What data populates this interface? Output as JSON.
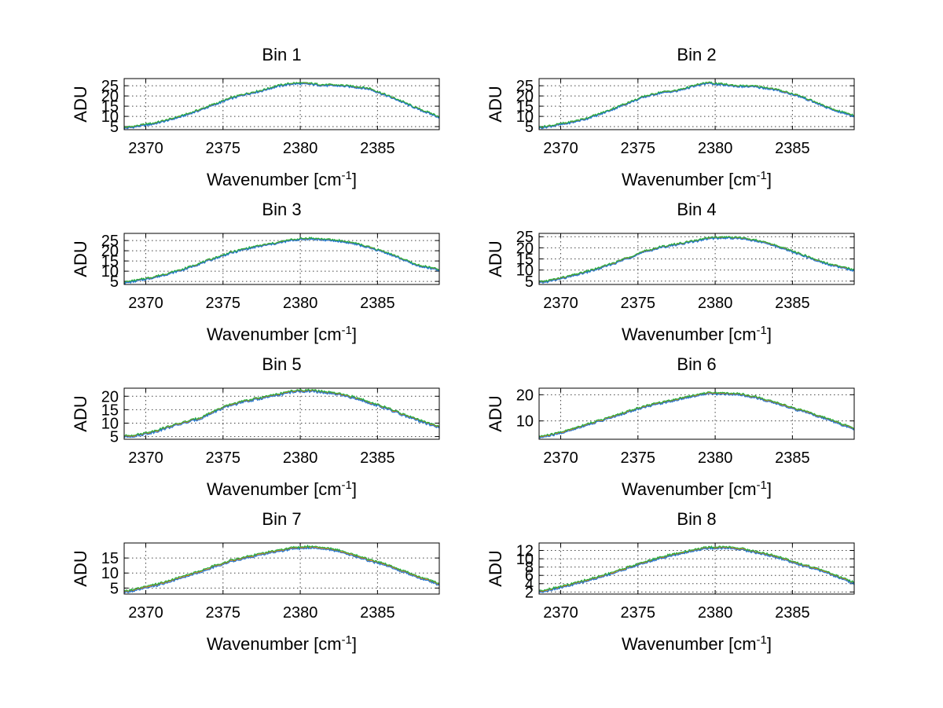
{
  "figure": {
    "chart_data": [
      {
        "type": "line",
        "title": "Bin 1",
        "xlabel": "Wavenumber [cm",
        "xlabel_sup": "-1",
        "xlabel_end": "]",
        "ylabel": "ADU",
        "xlim": [
          2368.6,
          2389.0
        ],
        "ylim": [
          3.5,
          28.5
        ],
        "xticks": [
          2370,
          2375,
          2380,
          2385
        ],
        "yticks": [
          5,
          10,
          15,
          20,
          25
        ],
        "grid": true,
        "x": [
          2368.6,
          2369.5,
          2370.5,
          2371.5,
          2372.5,
          2373.5,
          2374.5,
          2375.5,
          2376.5,
          2377.5,
          2378.5,
          2379.5,
          2380.5,
          2381.5,
          2382.5,
          2383.5,
          2384.5,
          2385.5,
          2386.5,
          2387.5,
          2389.0
        ],
        "series": [
          {
            "values": [
              4.3,
              5.3,
              6.5,
              8.3,
              10.5,
              13.2,
              16.0,
              18.8,
              21.0,
              22.6,
              24.8,
              26.1,
              26.0,
              25.3,
              25.1,
              24.5,
              23.5,
              20.5,
              17.5,
              14.0,
              9.7
            ]
          },
          {
            "values": [
              4.6,
              5.6,
              6.8,
              8.6,
              10.8,
              13.5,
              16.3,
              19.1,
              21.3,
              22.9,
              25.1,
              26.4,
              26.3,
              25.6,
              25.4,
              24.8,
              23.8,
              20.8,
              17.8,
              14.3,
              10.0
            ]
          },
          {
            "values": [
              4.0,
              5.0,
              6.2,
              8.0,
              10.2,
              12.9,
              15.7,
              18.5,
              20.7,
              22.3,
              24.5,
              25.8,
              25.7,
              25.0,
              24.8,
              24.2,
              23.2,
              20.2,
              17.2,
              13.7,
              9.4
            ]
          }
        ]
      },
      {
        "type": "line",
        "title": "Bin 2",
        "xlabel": "Wavenumber [cm",
        "xlabel_sup": "-1",
        "xlabel_end": "]",
        "ylabel": "ADU",
        "xlim": [
          2368.6,
          2389.0
        ],
        "ylim": [
          3.5,
          28.5
        ],
        "xticks": [
          2370,
          2375,
          2380,
          2385
        ],
        "yticks": [
          5,
          10,
          15,
          20,
          25
        ],
        "grid": true,
        "x": [
          2368.6,
          2369.5,
          2370.5,
          2371.5,
          2372.5,
          2373.5,
          2374.5,
          2375.5,
          2376.5,
          2377.5,
          2378.5,
          2379.5,
          2380.5,
          2381.5,
          2382.5,
          2383.5,
          2384.5,
          2385.5,
          2386.5,
          2387.5,
          2389.0
        ],
        "series": [
          {
            "values": [
              4.5,
              5.5,
              6.8,
              8.6,
              11.0,
              14.0,
              17.0,
              19.8,
              21.7,
              22.5,
              24.6,
              26.4,
              25.5,
              24.8,
              24.6,
              23.7,
              22.0,
              19.8,
              16.8,
              13.5,
              10.3
            ]
          },
          {
            "values": [
              4.8,
              5.8,
              7.1,
              8.9,
              11.3,
              14.3,
              17.3,
              20.1,
              22.0,
              22.8,
              24.9,
              26.7,
              25.8,
              25.1,
              24.9,
              24.0,
              22.3,
              20.1,
              17.1,
              13.8,
              10.6
            ]
          },
          {
            "values": [
              4.2,
              5.2,
              6.5,
              8.3,
              10.7,
              13.7,
              16.7,
              19.5,
              21.4,
              22.2,
              24.3,
              26.1,
              25.2,
              24.5,
              24.3,
              23.4,
              21.7,
              19.5,
              16.5,
              13.2,
              10.0
            ]
          }
        ]
      },
      {
        "type": "line",
        "title": "Bin 3",
        "xlabel": "Wavenumber [cm",
        "xlabel_sup": "-1",
        "xlabel_end": "]",
        "ylabel": "ADU",
        "xlim": [
          2368.6,
          2389.0
        ],
        "ylim": [
          3.5,
          28.5
        ],
        "xticks": [
          2370,
          2375,
          2380,
          2385
        ],
        "yticks": [
          5,
          10,
          15,
          20,
          25
        ],
        "grid": true,
        "x": [
          2368.6,
          2369.5,
          2370.5,
          2371.5,
          2372.5,
          2373.5,
          2374.5,
          2375.5,
          2376.5,
          2377.5,
          2378.5,
          2379.5,
          2380.5,
          2381.5,
          2382.5,
          2383.5,
          2384.5,
          2385.5,
          2386.5,
          2387.5,
          2389.0
        ],
        "series": [
          {
            "values": [
              4.4,
              5.5,
              7.0,
              8.9,
              11.0,
              13.8,
              16.4,
              19.0,
              21.0,
              22.5,
              23.8,
              25.3,
              26.0,
              25.5,
              24.8,
              23.6,
              21.5,
              19.3,
              16.3,
              13.0,
              10.6
            ]
          },
          {
            "values": [
              4.7,
              5.8,
              7.3,
              9.2,
              11.3,
              14.1,
              16.7,
              19.3,
              21.3,
              22.8,
              24.1,
              25.6,
              26.3,
              25.8,
              25.1,
              23.9,
              21.8,
              19.6,
              16.6,
              13.3,
              10.9
            ]
          },
          {
            "values": [
              4.1,
              5.2,
              6.7,
              8.6,
              10.7,
              13.5,
              16.1,
              18.7,
              20.7,
              22.2,
              23.5,
              25.0,
              25.7,
              25.2,
              24.5,
              23.3,
              21.2,
              19.0,
              16.0,
              12.7,
              10.3
            ]
          }
        ]
      },
      {
        "type": "line",
        "title": "Bin 4",
        "xlabel": "Wavenumber [cm",
        "xlabel_sup": "-1",
        "xlabel_end": "]",
        "ylabel": "ADU",
        "xlim": [
          2368.6,
          2389.0
        ],
        "ylim": [
          3.5,
          26.5
        ],
        "xticks": [
          2370,
          2375,
          2380,
          2385
        ],
        "yticks": [
          5,
          10,
          15,
          20,
          25
        ],
        "grid": true,
        "x": [
          2368.6,
          2369.5,
          2370.5,
          2371.5,
          2372.5,
          2373.5,
          2374.5,
          2375.5,
          2376.5,
          2377.5,
          2378.5,
          2379.5,
          2380.5,
          2381.5,
          2382.5,
          2383.5,
          2384.5,
          2385.5,
          2386.5,
          2387.5,
          2389.0
        ],
        "series": [
          {
            "values": [
              4.3,
              5.5,
              7.0,
              8.8,
              10.8,
              13.2,
              15.9,
              18.4,
              20.3,
              21.6,
              22.8,
              24.2,
              24.6,
              24.5,
              23.4,
              21.8,
              19.6,
              17.1,
              14.5,
              12.3,
              9.8
            ]
          },
          {
            "values": [
              4.6,
              5.8,
              7.3,
              9.1,
              11.1,
              13.5,
              16.2,
              18.7,
              20.6,
              21.9,
              23.1,
              24.5,
              24.9,
              24.8,
              23.7,
              22.1,
              19.9,
              17.4,
              14.8,
              12.6,
              10.1
            ]
          },
          {
            "values": [
              4.0,
              5.2,
              6.7,
              8.5,
              10.5,
              12.9,
              15.6,
              18.1,
              20.0,
              21.3,
              22.5,
              23.9,
              24.3,
              24.2,
              23.1,
              21.5,
              19.3,
              16.8,
              14.2,
              12.0,
              9.5
            ]
          }
        ]
      },
      {
        "type": "line",
        "title": "Bin 5",
        "xlabel": "Wavenumber [cm",
        "xlabel_sup": "-1",
        "xlabel_end": "]",
        "ylabel": "ADU",
        "xlim": [
          2368.6,
          2389.0
        ],
        "ylim": [
          4.0,
          23.0
        ],
        "xticks": [
          2370,
          2375,
          2380,
          2385
        ],
        "yticks": [
          5,
          10,
          15,
          20
        ],
        "grid": true,
        "x": [
          2368.6,
          2369.5,
          2370.5,
          2371.5,
          2372.5,
          2373.5,
          2374.5,
          2375.5,
          2376.5,
          2377.5,
          2378.5,
          2379.5,
          2380.5,
          2381.5,
          2382.5,
          2383.5,
          2384.5,
          2385.5,
          2386.5,
          2387.5,
          2389.0
        ],
        "series": [
          {
            "values": [
              5.0,
              5.6,
              6.8,
              8.6,
              10.2,
              11.8,
              14.5,
              16.8,
              18.2,
              19.4,
              20.5,
              21.8,
              22.1,
              21.6,
              20.7,
              19.5,
              17.7,
              15.7,
              13.5,
              11.3,
              8.5
            ]
          },
          {
            "values": [
              5.3,
              5.9,
              7.1,
              8.9,
              10.5,
              12.1,
              14.8,
              17.1,
              18.5,
              19.7,
              20.8,
              22.1,
              22.4,
              21.9,
              21.0,
              19.8,
              18.0,
              16.0,
              13.8,
              11.6,
              8.8
            ]
          },
          {
            "values": [
              4.7,
              5.3,
              6.5,
              8.3,
              9.9,
              11.5,
              14.2,
              16.5,
              17.9,
              19.1,
              20.2,
              21.5,
              21.8,
              21.3,
              20.4,
              19.2,
              17.4,
              15.4,
              13.2,
              11.0,
              8.2
            ]
          }
        ]
      },
      {
        "type": "line",
        "title": "Bin 6",
        "xlabel": "Wavenumber [cm",
        "xlabel_sup": "-1",
        "xlabel_end": "]",
        "ylabel": "ADU",
        "xlim": [
          2368.6,
          2389.0
        ],
        "ylim": [
          3.0,
          22.5
        ],
        "xticks": [
          2370,
          2375,
          2380,
          2385
        ],
        "yticks": [
          10,
          20
        ],
        "grid": true,
        "x": [
          2368.6,
          2369.5,
          2370.5,
          2371.5,
          2372.5,
          2373.5,
          2374.5,
          2375.5,
          2376.5,
          2377.5,
          2378.5,
          2379.5,
          2380.5,
          2381.5,
          2382.5,
          2383.5,
          2384.5,
          2385.5,
          2386.5,
          2387.5,
          2389.0
        ],
        "series": [
          {
            "values": [
              3.8,
              4.8,
              6.3,
              8.3,
              10.0,
              11.8,
              13.8,
              15.6,
              16.9,
              18.2,
              19.5,
              20.6,
              20.4,
              20.3,
              19.2,
              17.6,
              15.8,
              14.0,
              12.2,
              10.2,
              6.9
            ]
          },
          {
            "values": [
              4.1,
              5.1,
              6.6,
              8.6,
              10.3,
              12.1,
              14.1,
              15.9,
              17.2,
              18.5,
              19.8,
              20.9,
              20.7,
              20.6,
              19.5,
              17.9,
              16.1,
              14.3,
              12.5,
              10.5,
              7.2
            ]
          },
          {
            "values": [
              3.5,
              4.5,
              6.0,
              8.0,
              9.7,
              11.5,
              13.5,
              15.3,
              16.6,
              17.9,
              19.2,
              20.3,
              20.1,
              20.0,
              18.9,
              17.3,
              15.5,
              13.7,
              11.9,
              9.9,
              6.6
            ]
          }
        ]
      },
      {
        "type": "line",
        "title": "Bin 7",
        "xlabel": "Wavenumber [cm",
        "xlabel_sup": "-1",
        "xlabel_end": "]",
        "ylabel": "ADU",
        "xlim": [
          2368.6,
          2389.0
        ],
        "ylim": [
          3.0,
          20.0
        ],
        "xticks": [
          2370,
          2375,
          2380,
          2385
        ],
        "yticks": [
          5,
          10,
          15
        ],
        "grid": true,
        "x": [
          2368.6,
          2369.5,
          2370.5,
          2371.5,
          2372.5,
          2373.5,
          2374.5,
          2375.5,
          2376.5,
          2377.5,
          2378.5,
          2379.5,
          2380.5,
          2381.5,
          2382.5,
          2383.5,
          2384.5,
          2385.5,
          2386.5,
          2387.5,
          2389.0
        ],
        "series": [
          {
            "values": [
              3.7,
              4.6,
              5.8,
              7.2,
              8.8,
              10.5,
              12.3,
              14.0,
              15.2,
              16.3,
              17.3,
              18.2,
              18.6,
              18.4,
              17.3,
              15.9,
              14.2,
              12.8,
              10.9,
              9.0,
              6.2
            ]
          },
          {
            "values": [
              4.0,
              4.9,
              6.1,
              7.5,
              9.1,
              10.8,
              12.6,
              14.3,
              15.5,
              16.6,
              17.6,
              18.5,
              18.9,
              18.7,
              17.6,
              16.2,
              14.5,
              13.1,
              11.2,
              9.3,
              6.5
            ]
          },
          {
            "values": [
              3.4,
              4.3,
              5.5,
              6.9,
              8.5,
              10.2,
              12.0,
              13.7,
              14.9,
              16.0,
              17.0,
              17.9,
              18.3,
              18.1,
              17.0,
              15.6,
              13.9,
              12.5,
              10.6,
              8.7,
              5.9
            ]
          }
        ]
      },
      {
        "type": "line",
        "title": "Bin 8",
        "xlabel": "Wavenumber [cm",
        "xlabel_sup": "-1",
        "xlabel_end": "]",
        "ylabel": "ADU",
        "xlim": [
          2368.6,
          2389.0
        ],
        "ylim": [
          1.5,
          13.8
        ],
        "xticks": [
          2370,
          2375,
          2380,
          2385
        ],
        "yticks": [
          2,
          4,
          6,
          8,
          10,
          12
        ],
        "grid": true,
        "x": [
          2368.6,
          2369.5,
          2370.5,
          2371.5,
          2372.5,
          2373.5,
          2374.5,
          2375.5,
          2376.5,
          2377.5,
          2378.5,
          2379.5,
          2380.5,
          2381.5,
          2382.5,
          2383.5,
          2384.5,
          2385.5,
          2386.5,
          2387.5,
          2389.0
        ],
        "series": [
          {
            "values": [
              2.1,
              2.8,
              3.6,
              4.6,
              5.6,
              6.8,
              8.0,
              9.2,
              10.3,
              11.1,
              12.0,
              12.6,
              12.7,
              12.5,
              11.7,
              10.9,
              9.9,
              8.7,
              7.6,
              6.3,
              4.1
            ]
          },
          {
            "values": [
              2.3,
              3.0,
              3.8,
              4.8,
              5.8,
              7.0,
              8.2,
              9.4,
              10.5,
              11.3,
              12.2,
              12.8,
              12.9,
              12.7,
              11.9,
              11.1,
              10.1,
              8.9,
              7.8,
              6.5,
              4.3
            ]
          },
          {
            "values": [
              1.9,
              2.6,
              3.4,
              4.4,
              5.4,
              6.6,
              7.8,
              9.0,
              10.1,
              10.9,
              11.8,
              12.4,
              12.5,
              12.3,
              11.5,
              10.7,
              9.7,
              8.5,
              7.4,
              6.1,
              3.9
            ]
          }
        ]
      }
    ],
    "series_colors": [
      "#e8700f",
      "#1faf3a",
      "#1f77d4"
    ]
  }
}
